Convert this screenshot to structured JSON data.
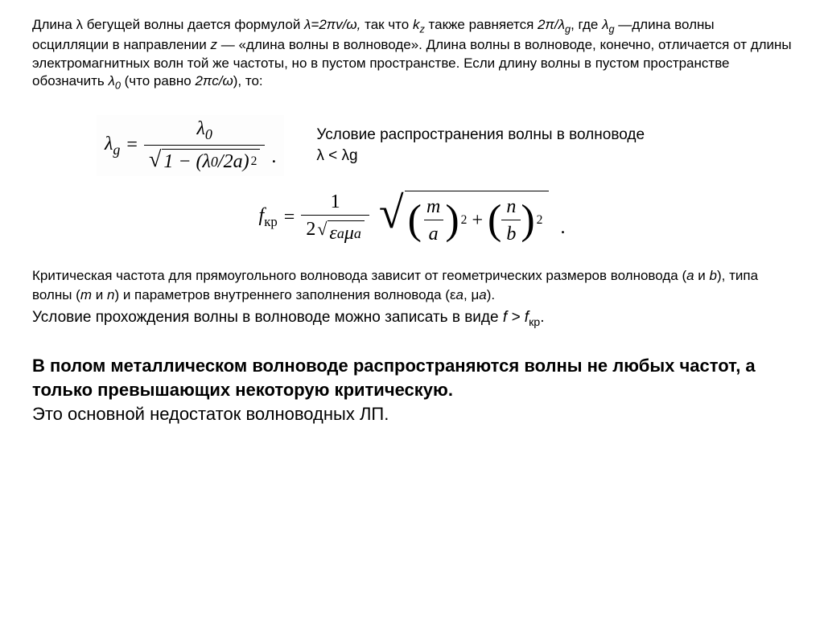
{
  "paragraph1": {
    "text_html": "Длина λ бегущей волны дается формулой <span class='ital'>λ=2πv/ω,</span> так что <span class='ital'>k<span class='sub'>z</span></span> также равняется <span class='ital'>2π/λ<span class='sub'>g</span></span>, где <span class='ital'>λ<span class='sub'>g</span></span> —длина волны осцилляции в направлении <span class='ital'>z</span> — «длина волны в волноводе». Длина волны в волноводе, конечно, отличается от длины электромагнитных волн той же частоты, но в пустом пространстве. Если длину волны в пустом пространстве обозначить <span class='ital'>λ<span class='sub-n'>0</span></span> (что равно <span class='ital'>2πc/ω</span>), то:"
  },
  "formula1": {
    "lhs": "λ",
    "lhs_sub": "g",
    "eq": "=",
    "numerator": "λ",
    "numerator_sub": "0",
    "den_inside": "1 − (λ<span class='sub-n'>0</span>/2a)<span class='sup2'>2</span>",
    "dot": "."
  },
  "condition1": "Условие распространения волны в волноводе λ < λg",
  "formula2": {
    "lhs": "f",
    "lhs_sub": "кр",
    "eq": "=",
    "coef_num": "1",
    "coef_den_pre": "2",
    "coef_den_root": "ε<span class='sub'>a</span> μ<span class='sub'>a</span>",
    "term1_num": "m",
    "term1_den": "a",
    "plus": "+",
    "term2_num": "n",
    "term2_den": "b",
    "dot": "."
  },
  "paragraph2": {
    "text_html": "Критическая частота для прямоугольного волновода зависит от геометрических размеров волновода (<span class='ital'>a</span> и <span class='ital'>b</span>), типа волны (<span class='ital'>m</span> и <span class='ital'>n</span>) и параметров внутреннего заполнения волновода (ε<span class='ital'>a</span>, μ<span class='ital'>a</span>)."
  },
  "condition2_html": "Условие прохождения волны в волноводе можно записать в виде <span class='ital'>f &gt; f</span><span class='sub-n'>кр</span>.",
  "bold_block": "В полом металлическом волноводе распространяются волны не любых частот, а только превышающих некоторую критическую.",
  "tail": "Это основной недостаток волноводных ЛП.",
  "colors": {
    "text": "#000000",
    "background": "#ffffff"
  }
}
